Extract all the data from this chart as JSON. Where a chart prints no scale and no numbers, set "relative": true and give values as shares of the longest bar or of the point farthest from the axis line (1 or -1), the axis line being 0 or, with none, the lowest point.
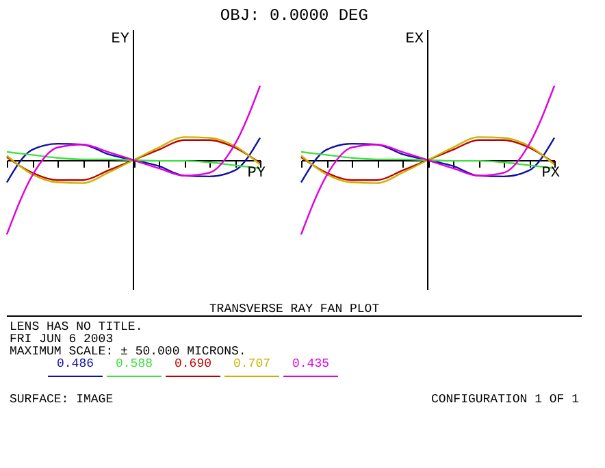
{
  "chart_data": [
    {
      "type": "line",
      "title": "OBJ: 0.0000 DEG",
      "xlabel": "PY",
      "ylabel": "EY",
      "relative": true,
      "legend": "bottom",
      "tick_labels": false,
      "categories": [
        null,
        null,
        null,
        null,
        null,
        null,
        null,
        null,
        null,
        null,
        null
      ],
      "annotations": [
        "TRANSVERSE RAY FAN PLOT",
        "LENS HAS NO TITLE.",
        "FRI JUN 6 2003",
        "MAXIMUM SCALE: ± 50.000 MICRONS.",
        "SURFACE: IMAGE",
        "CONFIGURATION 1 OF 1"
      ],
      "series": [
        {
          "name": "0.486",
          "color": "#1010a0",
          "values": [
            -0.3,
            0.14,
            0.22,
            0.21,
            0.08,
            0,
            -0.08,
            -0.21,
            -0.22,
            -0.14,
            0.3
          ]
        },
        {
          "name": "0.588",
          "color": "#40e040",
          "values": [
            0.11,
            0.07,
            0.03,
            0.01,
            0.01,
            0,
            -0.01,
            -0.01,
            -0.03,
            -0.07,
            -0.11
          ]
        },
        {
          "name": "0.690",
          "color": "#c00000",
          "values": [
            0.04,
            -0.17,
            -0.27,
            -0.27,
            -0.14,
            0,
            0.14,
            0.27,
            0.27,
            0.17,
            -0.04
          ]
        },
        {
          "name": "0.707",
          "color": "#c8b400",
          "values": [
            0.06,
            -0.19,
            -0.3,
            -0.31,
            -0.17,
            0,
            0.17,
            0.31,
            0.3,
            0.19,
            -0.06
          ]
        },
        {
          "name": "0.435",
          "color": "#e000e0",
          "values": [
            -1,
            -0.21,
            0.17,
            0.21,
            0.11,
            0,
            -0.11,
            -0.21,
            -0.17,
            0.21,
            1
          ]
        }
      ]
    },
    {
      "type": "line",
      "xlabel": "PX",
      "ylabel": "EX",
      "relative": true,
      "tick_labels": false,
      "categories": [
        null,
        null,
        null,
        null,
        null,
        null,
        null,
        null,
        null,
        null,
        null
      ],
      "series": [
        {
          "color": "#1010a0",
          "values": [
            -0.3,
            0.14,
            0.22,
            0.21,
            0.08,
            0,
            -0.08,
            -0.21,
            -0.22,
            -0.14,
            0.3
          ]
        },
        {
          "color": "#40e040",
          "values": [
            0.11,
            0.07,
            0.03,
            0.01,
            0.01,
            0,
            -0.01,
            -0.01,
            -0.03,
            -0.07,
            -0.11
          ]
        },
        {
          "color": "#c00000",
          "values": [
            0.04,
            -0.17,
            -0.27,
            -0.27,
            -0.14,
            0,
            0.14,
            0.27,
            0.27,
            0.17,
            -0.04
          ]
        },
        {
          "color": "#c8b400",
          "values": [
            0.06,
            -0.19,
            -0.3,
            -0.31,
            -0.17,
            0,
            0.17,
            0.31,
            0.3,
            0.19,
            -0.06
          ]
        },
        {
          "color": "#e000e0",
          "values": [
            -1,
            -0.21,
            0.17,
            0.21,
            0.11,
            0,
            -0.11,
            -0.21,
            -0.17,
            0.21,
            1
          ]
        }
      ]
    }
  ]
}
